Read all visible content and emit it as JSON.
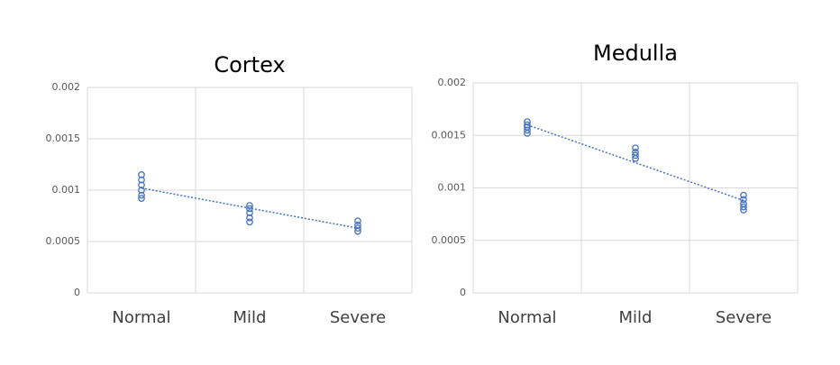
{
  "chart_data": [
    {
      "type": "scatter",
      "title": "Cortex",
      "categories": [
        "Normal",
        "Mild",
        "Severe"
      ],
      "values": [
        [
          0.00092,
          0.00095,
          0.001,
          0.00105,
          0.0011,
          0.00115
        ],
        [
          0.00069,
          0.00073,
          0.00078,
          0.00082,
          0.00085
        ],
        [
          0.0006,
          0.00063,
          0.00066,
          0.0007
        ]
      ],
      "trendline": [
        0.00102,
        0.000825,
        0.00063
      ],
      "color": "#4472c4",
      "ylim": [
        0,
        0.002
      ],
      "yticks": [
        0,
        0.0005,
        0.001,
        0.0015,
        0.002
      ],
      "grid": true
    },
    {
      "type": "scatter",
      "title": "Medulla",
      "categories": [
        "Normal",
        "Mild",
        "Severe"
      ],
      "values": [
        [
          0.00152,
          0.00155,
          0.00158,
          0.0016,
          0.00163
        ],
        [
          0.00128,
          0.00131,
          0.00134,
          0.00138
        ],
        [
          0.00079,
          0.00082,
          0.00085,
          0.00089,
          0.00093
        ]
      ],
      "trendline": [
        0.0016,
        0.00124,
        0.00088
      ],
      "color": "#4472c4",
      "ylim": [
        0,
        0.002
      ],
      "yticks": [
        0,
        0.0005,
        0.001,
        0.0015,
        0.002
      ],
      "grid": true
    }
  ]
}
